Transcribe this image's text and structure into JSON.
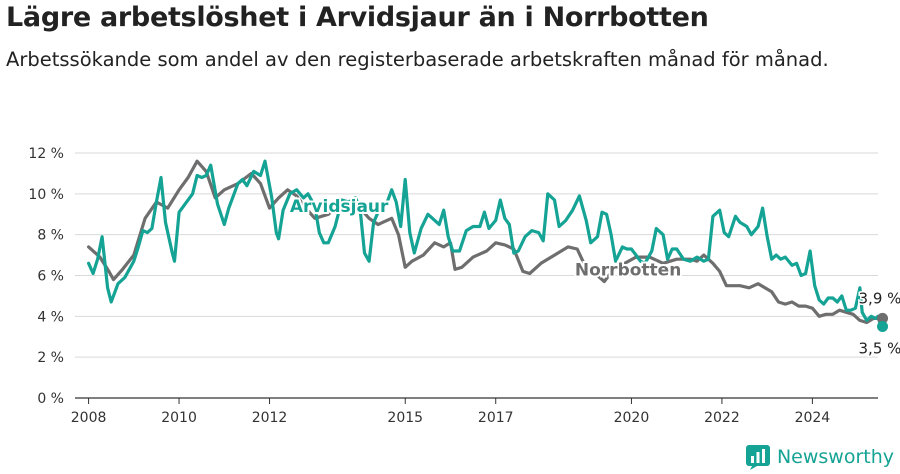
{
  "header": {
    "title": "Lägre arbetslöshet i Arvidsjaur än i Norrbotten",
    "subtitle": "Arbetssökande som andel av den registerbaserade arbetskraften månad för månad."
  },
  "branding": {
    "name": "Newsworthy",
    "icon": "newsworthy-logo-icon"
  },
  "colors": {
    "arvidsjaur": "#14a394",
    "norrbotten": "#6e6e6e",
    "grid": "#d9d9d9",
    "axis": "#333333"
  },
  "chart_data": {
    "type": "line",
    "x_unit": "year",
    "x_ticks": [
      "2008",
      "2010",
      "2012",
      "2015",
      "2017",
      "2020",
      "2022",
      "2024"
    ],
    "xlim": [
      2007.7,
      2025.45
    ],
    "y_ticks": [
      "0 %",
      "2 %",
      "4 %",
      "6 %",
      "8 %",
      "10 %",
      "12 %"
    ],
    "ylim": [
      0,
      12
    ],
    "grid": true,
    "series": [
      {
        "name": "Norrbotten",
        "end_label": "3,9 %",
        "points": [
          [
            2008.0,
            7.4
          ],
          [
            2008.25,
            6.9
          ],
          [
            2008.45,
            6.2
          ],
          [
            2008.55,
            5.8
          ],
          [
            2008.75,
            6.3
          ],
          [
            2009.0,
            7.0
          ],
          [
            2009.25,
            8.8
          ],
          [
            2009.5,
            9.6
          ],
          [
            2009.75,
            9.3
          ],
          [
            2010.0,
            10.2
          ],
          [
            2010.2,
            10.8
          ],
          [
            2010.4,
            11.6
          ],
          [
            2010.6,
            11.1
          ],
          [
            2010.8,
            9.8
          ],
          [
            2011.0,
            10.2
          ],
          [
            2011.3,
            10.5
          ],
          [
            2011.6,
            11.0
          ],
          [
            2011.8,
            10.5
          ],
          [
            2012.0,
            9.3
          ],
          [
            2012.2,
            9.8
          ],
          [
            2012.4,
            10.2
          ],
          [
            2012.6,
            9.9
          ],
          [
            2012.8,
            9.3
          ],
          [
            2013.0,
            8.8
          ],
          [
            2013.3,
            9.0
          ],
          [
            2013.6,
            9.6
          ],
          [
            2014.0,
            9.3
          ],
          [
            2014.2,
            8.8
          ],
          [
            2014.4,
            8.5
          ],
          [
            2014.7,
            8.8
          ],
          [
            2014.85,
            8.0
          ],
          [
            2015.0,
            6.4
          ],
          [
            2015.15,
            6.7
          ],
          [
            2015.4,
            7.0
          ],
          [
            2015.65,
            7.6
          ],
          [
            2015.85,
            7.4
          ],
          [
            2016.0,
            7.6
          ],
          [
            2016.1,
            6.3
          ],
          [
            2016.25,
            6.4
          ],
          [
            2016.5,
            6.9
          ],
          [
            2016.8,
            7.2
          ],
          [
            2017.0,
            7.6
          ],
          [
            2017.2,
            7.5
          ],
          [
            2017.4,
            7.3
          ],
          [
            2017.6,
            6.2
          ],
          [
            2017.75,
            6.1
          ],
          [
            2018.0,
            6.6
          ],
          [
            2018.3,
            7.0
          ],
          [
            2018.6,
            7.4
          ],
          [
            2018.8,
            7.3
          ],
          [
            2018.95,
            6.6
          ],
          [
            2019.2,
            6.1
          ],
          [
            2019.4,
            5.7
          ],
          [
            2019.6,
            6.3
          ],
          [
            2019.85,
            6.6
          ],
          [
            2020.1,
            6.9
          ],
          [
            2020.4,
            6.9
          ],
          [
            2020.7,
            6.6
          ],
          [
            2021.0,
            6.8
          ],
          [
            2021.3,
            6.8
          ],
          [
            2021.45,
            6.7
          ],
          [
            2021.6,
            7.0
          ],
          [
            2021.8,
            6.6
          ],
          [
            2021.95,
            6.2
          ],
          [
            2022.1,
            5.5
          ],
          [
            2022.4,
            5.5
          ],
          [
            2022.6,
            5.4
          ],
          [
            2022.8,
            5.6
          ],
          [
            2022.95,
            5.4
          ],
          [
            2023.1,
            5.2
          ],
          [
            2023.25,
            4.7
          ],
          [
            2023.4,
            4.6
          ],
          [
            2023.55,
            4.7
          ],
          [
            2023.7,
            4.5
          ],
          [
            2023.85,
            4.5
          ],
          [
            2024.0,
            4.4
          ],
          [
            2024.15,
            4.0
          ],
          [
            2024.3,
            4.1
          ],
          [
            2024.45,
            4.1
          ],
          [
            2024.6,
            4.3
          ],
          [
            2024.75,
            4.2
          ],
          [
            2024.9,
            4.1
          ],
          [
            2025.05,
            3.8
          ],
          [
            2025.2,
            3.7
          ],
          [
            2025.35,
            3.9
          ],
          [
            2025.5,
            3.9
          ],
          [
            2025.55,
            3.9
          ]
        ]
      },
      {
        "name": "Arvidsjaur",
        "end_label": "3,5 %",
        "points": [
          [
            2008.0,
            6.6
          ],
          [
            2008.1,
            6.1
          ],
          [
            2008.2,
            6.8
          ],
          [
            2008.3,
            7.9
          ],
          [
            2008.42,
            5.4
          ],
          [
            2008.5,
            4.7
          ],
          [
            2008.65,
            5.6
          ],
          [
            2008.8,
            5.9
          ],
          [
            2009.0,
            6.7
          ],
          [
            2009.1,
            7.4
          ],
          [
            2009.2,
            8.2
          ],
          [
            2009.3,
            8.1
          ],
          [
            2009.4,
            8.3
          ],
          [
            2009.5,
            9.6
          ],
          [
            2009.6,
            10.8
          ],
          [
            2009.7,
            8.6
          ],
          [
            2009.85,
            7.1
          ],
          [
            2009.9,
            6.7
          ],
          [
            2010.0,
            9.1
          ],
          [
            2010.1,
            9.4
          ],
          [
            2010.3,
            10.0
          ],
          [
            2010.4,
            10.9
          ],
          [
            2010.5,
            10.8
          ],
          [
            2010.6,
            10.9
          ],
          [
            2010.7,
            11.4
          ],
          [
            2010.85,
            9.5
          ],
          [
            2011.0,
            8.5
          ],
          [
            2011.1,
            9.3
          ],
          [
            2011.3,
            10.5
          ],
          [
            2011.4,
            10.7
          ],
          [
            2011.5,
            10.4
          ],
          [
            2011.65,
            11.1
          ],
          [
            2011.8,
            10.9
          ],
          [
            2011.9,
            11.6
          ],
          [
            2012.05,
            9.8
          ],
          [
            2012.15,
            8.1
          ],
          [
            2012.2,
            7.8
          ],
          [
            2012.3,
            9.2
          ],
          [
            2012.45,
            10.0
          ],
          [
            2012.6,
            10.2
          ],
          [
            2012.75,
            9.8
          ],
          [
            2012.85,
            10.0
          ],
          [
            2013.0,
            9.4
          ],
          [
            2013.1,
            8.1
          ],
          [
            2013.2,
            7.6
          ],
          [
            2013.3,
            7.6
          ],
          [
            2013.45,
            8.4
          ],
          [
            2013.6,
            9.7
          ],
          [
            2013.75,
            9.6
          ],
          [
            2013.9,
            9.8
          ],
          [
            2014.0,
            9.3
          ],
          [
            2014.1,
            7.1
          ],
          [
            2014.2,
            6.7
          ],
          [
            2014.3,
            8.6
          ],
          [
            2014.4,
            9.1
          ],
          [
            2014.6,
            9.6
          ],
          [
            2014.7,
            10.2
          ],
          [
            2014.8,
            9.6
          ],
          [
            2014.9,
            8.4
          ],
          [
            2015.0,
            10.7
          ],
          [
            2015.1,
            8.1
          ],
          [
            2015.2,
            7.1
          ],
          [
            2015.35,
            8.3
          ],
          [
            2015.5,
            9.0
          ],
          [
            2015.6,
            8.8
          ],
          [
            2015.75,
            8.5
          ],
          [
            2015.85,
            9.2
          ],
          [
            2015.95,
            7.9
          ],
          [
            2016.05,
            7.2
          ],
          [
            2016.2,
            7.2
          ],
          [
            2016.35,
            8.2
          ],
          [
            2016.5,
            8.4
          ],
          [
            2016.65,
            8.4
          ],
          [
            2016.75,
            9.1
          ],
          [
            2016.85,
            8.3
          ],
          [
            2017.0,
            8.7
          ],
          [
            2017.1,
            9.7
          ],
          [
            2017.2,
            8.8
          ],
          [
            2017.3,
            8.5
          ],
          [
            2017.4,
            7.1
          ],
          [
            2017.5,
            7.2
          ],
          [
            2017.65,
            7.9
          ],
          [
            2017.8,
            8.2
          ],
          [
            2017.95,
            8.1
          ],
          [
            2018.05,
            7.7
          ],
          [
            2018.15,
            10.0
          ],
          [
            2018.3,
            9.7
          ],
          [
            2018.4,
            8.4
          ],
          [
            2018.55,
            8.7
          ],
          [
            2018.7,
            9.2
          ],
          [
            2018.85,
            9.9
          ],
          [
            2019.0,
            8.7
          ],
          [
            2019.1,
            7.6
          ],
          [
            2019.25,
            7.9
          ],
          [
            2019.35,
            9.1
          ],
          [
            2019.45,
            9.0
          ],
          [
            2019.55,
            8.0
          ],
          [
            2019.65,
            6.7
          ],
          [
            2019.8,
            7.4
          ],
          [
            2019.9,
            7.3
          ],
          [
            2020.0,
            7.3
          ],
          [
            2020.1,
            7.0
          ],
          [
            2020.2,
            6.7
          ],
          [
            2020.3,
            6.6
          ],
          [
            2020.45,
            7.2
          ],
          [
            2020.55,
            8.3
          ],
          [
            2020.7,
            8.0
          ],
          [
            2020.8,
            6.8
          ],
          [
            2020.9,
            7.3
          ],
          [
            2021.0,
            7.3
          ],
          [
            2021.15,
            6.8
          ],
          [
            2021.3,
            6.7
          ],
          [
            2021.45,
            6.9
          ],
          [
            2021.6,
            6.7
          ],
          [
            2021.7,
            6.8
          ],
          [
            2021.8,
            8.9
          ],
          [
            2021.95,
            9.2
          ],
          [
            2022.05,
            8.1
          ],
          [
            2022.15,
            7.9
          ],
          [
            2022.3,
            8.9
          ],
          [
            2022.4,
            8.6
          ],
          [
            2022.55,
            8.4
          ],
          [
            2022.65,
            8.0
          ],
          [
            2022.8,
            8.4
          ],
          [
            2022.9,
            9.3
          ],
          [
            2023.0,
            7.9
          ],
          [
            2023.1,
            6.8
          ],
          [
            2023.2,
            7.0
          ],
          [
            2023.3,
            6.8
          ],
          [
            2023.4,
            6.9
          ],
          [
            2023.55,
            6.5
          ],
          [
            2023.65,
            6.6
          ],
          [
            2023.75,
            6.0
          ],
          [
            2023.85,
            6.1
          ],
          [
            2023.95,
            7.2
          ],
          [
            2024.05,
            5.5
          ],
          [
            2024.15,
            4.8
          ],
          [
            2024.25,
            4.6
          ],
          [
            2024.35,
            4.9
          ],
          [
            2024.45,
            4.9
          ],
          [
            2024.55,
            4.7
          ],
          [
            2024.65,
            5.0
          ],
          [
            2024.75,
            4.3
          ],
          [
            2024.85,
            4.3
          ],
          [
            2024.95,
            4.4
          ],
          [
            2025.05,
            5.4
          ],
          [
            2025.1,
            4.2
          ],
          [
            2025.2,
            3.8
          ],
          [
            2025.3,
            4.0
          ],
          [
            2025.4,
            3.9
          ],
          [
            2025.45,
            4.0
          ],
          [
            2025.5,
            3.6
          ],
          [
            2025.55,
            3.5
          ]
        ]
      }
    ]
  }
}
